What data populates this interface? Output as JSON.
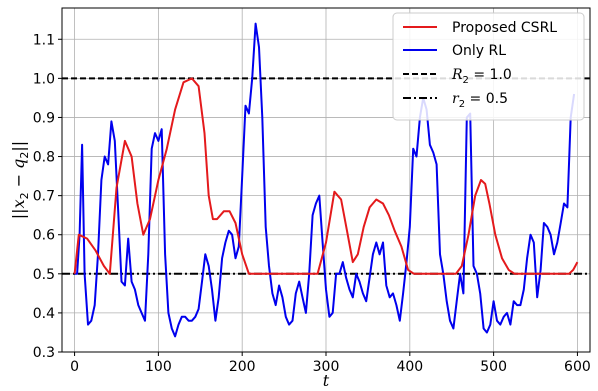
{
  "chart_data": {
    "type": "line",
    "xlabel": "t",
    "ylabel": "||x2 − q2||",
    "xlim": [
      -15,
      615
    ],
    "ylim": [
      0.3,
      1.18
    ],
    "xticks": [
      "0",
      "100",
      "200",
      "300",
      "400",
      "500",
      "600"
    ],
    "yticks": [
      "0.3",
      "0.4",
      "0.5",
      "0.6",
      "0.7",
      "0.8",
      "0.9",
      "1.0",
      "1.1"
    ],
    "grid": true,
    "legend_position": "top-right",
    "series": [
      {
        "name": "Proposed CSRL",
        "color": "#e41a1c",
        "x": [
          0,
          5,
          15,
          25,
          35,
          42,
          50,
          60,
          68,
          75,
          82,
          90,
          100,
          110,
          120,
          130,
          140,
          148,
          155,
          160,
          165,
          170,
          178,
          185,
          192,
          200,
          208,
          215,
          222,
          230,
          240,
          250,
          260,
          270,
          280,
          290,
          300,
          310,
          318,
          325,
          332,
          338,
          345,
          352,
          360,
          368,
          375,
          382,
          390,
          398,
          405,
          412,
          420,
          430,
          440,
          455,
          462,
          470,
          478,
          485,
          490,
          495,
          502,
          510,
          518,
          525,
          530,
          540,
          550,
          560,
          570,
          580,
          590,
          595,
          600
        ],
        "y": [
          0.5,
          0.6,
          0.59,
          0.56,
          0.52,
          0.5,
          0.72,
          0.84,
          0.8,
          0.68,
          0.6,
          0.64,
          0.74,
          0.82,
          0.92,
          0.99,
          1.0,
          0.98,
          0.86,
          0.7,
          0.64,
          0.64,
          0.66,
          0.66,
          0.63,
          0.55,
          0.5,
          0.5,
          0.5,
          0.5,
          0.5,
          0.5,
          0.5,
          0.5,
          0.5,
          0.5,
          0.58,
          0.71,
          0.69,
          0.61,
          0.53,
          0.55,
          0.62,
          0.67,
          0.69,
          0.68,
          0.65,
          0.61,
          0.57,
          0.51,
          0.5,
          0.5,
          0.5,
          0.5,
          0.5,
          0.5,
          0.52,
          0.6,
          0.7,
          0.74,
          0.73,
          0.68,
          0.6,
          0.54,
          0.51,
          0.5,
          0.5,
          0.5,
          0.5,
          0.5,
          0.5,
          0.5,
          0.5,
          0.51,
          0.53
        ]
      },
      {
        "name": "Only RL",
        "color": "#0000ee",
        "x": [
          0,
          3,
          6,
          9,
          12,
          16,
          20,
          24,
          28,
          32,
          36,
          40,
          44,
          48,
          52,
          56,
          60,
          64,
          68,
          72,
          76,
          80,
          84,
          88,
          92,
          96,
          100,
          104,
          108,
          112,
          116,
          120,
          124,
          128,
          132,
          136,
          140,
          144,
          148,
          152,
          156,
          160,
          164,
          168,
          172,
          176,
          180,
          184,
          188,
          192,
          196,
          200,
          204,
          208,
          212,
          216,
          220,
          224,
          228,
          232,
          236,
          240,
          244,
          248,
          252,
          256,
          260,
          264,
          268,
          272,
          276,
          280,
          284,
          288,
          292,
          296,
          300,
          304,
          308,
          312,
          316,
          320,
          324,
          328,
          332,
          336,
          340,
          344,
          348,
          352,
          356,
          360,
          364,
          368,
          372,
          376,
          380,
          384,
          388,
          392,
          396,
          400,
          404,
          408,
          412,
          416,
          420,
          424,
          428,
          432,
          436,
          440,
          444,
          448,
          452,
          456,
          460,
          464,
          468,
          472,
          476,
          480,
          484,
          488,
          492,
          496,
          500,
          504,
          508,
          512,
          516,
          520,
          524,
          528,
          532,
          536,
          540,
          544,
          548,
          552,
          556,
          560,
          564,
          568,
          572,
          576,
          580,
          584,
          588,
          592,
          596
        ],
        "y": [
          0.5,
          0.5,
          0.6,
          0.83,
          0.5,
          0.37,
          0.38,
          0.42,
          0.55,
          0.74,
          0.8,
          0.78,
          0.89,
          0.84,
          0.66,
          0.48,
          0.47,
          0.59,
          0.48,
          0.46,
          0.42,
          0.4,
          0.38,
          0.55,
          0.82,
          0.86,
          0.84,
          0.87,
          0.55,
          0.4,
          0.36,
          0.34,
          0.37,
          0.39,
          0.39,
          0.38,
          0.38,
          0.39,
          0.41,
          0.48,
          0.55,
          0.52,
          0.46,
          0.38,
          0.44,
          0.54,
          0.58,
          0.61,
          0.6,
          0.54,
          0.57,
          0.75,
          0.93,
          0.91,
          1.0,
          1.14,
          1.08,
          0.9,
          0.62,
          0.52,
          0.45,
          0.42,
          0.47,
          0.44,
          0.39,
          0.37,
          0.38,
          0.45,
          0.48,
          0.44,
          0.4,
          0.5,
          0.65,
          0.68,
          0.7,
          0.58,
          0.46,
          0.39,
          0.4,
          0.5,
          0.5,
          0.53,
          0.49,
          0.46,
          0.44,
          0.5,
          0.48,
          0.45,
          0.43,
          0.49,
          0.55,
          0.58,
          0.55,
          0.58,
          0.47,
          0.44,
          0.45,
          0.42,
          0.38,
          0.45,
          0.53,
          0.62,
          0.82,
          0.8,
          0.9,
          0.95,
          0.92,
          0.83,
          0.81,
          0.78,
          0.55,
          0.5,
          0.43,
          0.38,
          0.36,
          0.43,
          0.5,
          0.45,
          0.9,
          0.91,
          0.52,
          0.5,
          0.45,
          0.36,
          0.35,
          0.37,
          0.43,
          0.38,
          0.37,
          0.39,
          0.4,
          0.37,
          0.43,
          0.42,
          0.42,
          0.46,
          0.54,
          0.6,
          0.58,
          0.44,
          0.51,
          0.63,
          0.62,
          0.6,
          0.55,
          0.58,
          0.63,
          0.68,
          0.67,
          0.9,
          0.96
        ]
      },
      {
        "name": "R2 = 1.0",
        "color": "#000000",
        "style": "dashed",
        "x": [
          -15,
          615
        ],
        "y": [
          1.0,
          1.0
        ]
      },
      {
        "name": "r2 = 0.5",
        "color": "#000000",
        "style": "dashdot",
        "x": [
          -15,
          615
        ],
        "y": [
          0.5,
          0.5
        ]
      }
    ]
  },
  "legend": {
    "items": [
      {
        "label": "Proposed CSRL"
      },
      {
        "label": "Only RL"
      },
      {
        "label_main": "R",
        "label_sub": "2",
        "label_rest": " = 1.0"
      },
      {
        "label_main": "r",
        "label_sub": "2",
        "label_rest": " = 0.5"
      }
    ]
  },
  "ylabel_parts": {
    "open": "||",
    "var1": "x",
    "sub1": "2",
    "minus": " − ",
    "var2": "q",
    "sub2": "2",
    "close": "||"
  }
}
